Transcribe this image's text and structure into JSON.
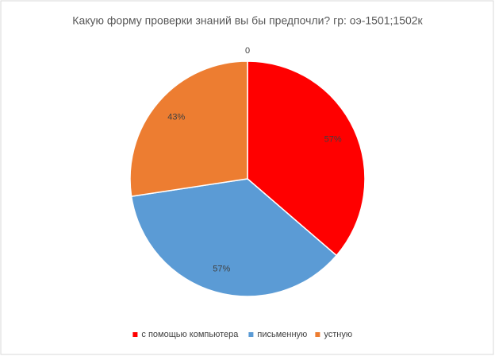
{
  "chart_data": {
    "type": "pie",
    "title": "Какую форму проверки знаний вы бы предпочли? гр: оэ-1501;1502к",
    "categories": [
      "с помощью компьютера",
      "письменную",
      "устную",
      null
    ],
    "values": [
      57,
      57,
      43,
      0
    ],
    "value_labels": [
      "57%",
      "57%",
      "43%",
      "0"
    ],
    "colors": [
      "#ff0000",
      "#5b9bd5",
      "#ed7d31",
      "#a5a5a5"
    ],
    "legend": "bottom"
  }
}
